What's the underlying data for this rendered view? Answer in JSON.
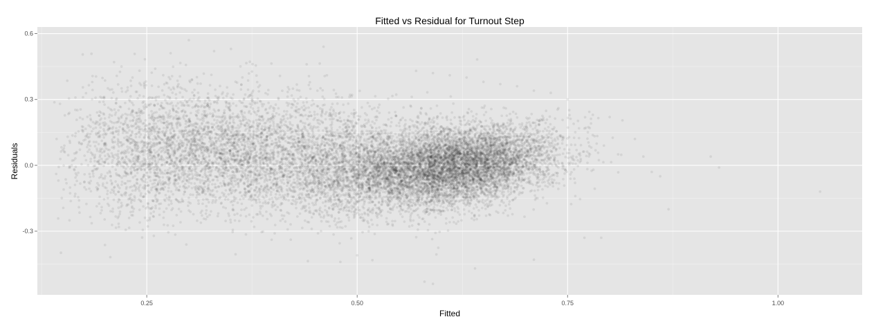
{
  "chart_data": {
    "type": "scatter",
    "title": "Fitted vs Residual for Turnout Step",
    "xlabel": "Fitted",
    "ylabel": "Residuals",
    "xlim": [
      0.12,
      1.1
    ],
    "ylim": [
      -0.59,
      0.63
    ],
    "x_ticks": [
      {
        "value": 0.25,
        "label": "0.25"
      },
      {
        "value": 0.5,
        "label": "0.50"
      },
      {
        "value": 0.75,
        "label": "0.75"
      },
      {
        "value": 1.0,
        "label": "1.00"
      }
    ],
    "y_ticks": [
      {
        "value": 0.6,
        "label": "0.6"
      },
      {
        "value": 0.3,
        "label": "0.3"
      },
      {
        "value": 0.0,
        "label": "0.0"
      },
      {
        "value": -0.3,
        "label": "-0.3"
      }
    ],
    "grid": true,
    "legend": "none",
    "panel_color": "#e5e5e5",
    "grid_color": "#ffffff",
    "point_color": "#000000",
    "point_alpha": 0.07,
    "density_clusters": [
      {
        "x": 0.63,
        "y": 0.01,
        "sx": 0.055,
        "sy": 0.085,
        "rho": 0.25,
        "weight": 0.36
      },
      {
        "x": 0.56,
        "y": -0.03,
        "sx": 0.07,
        "sy": 0.1,
        "rho": 0.15,
        "weight": 0.22
      },
      {
        "x": 0.45,
        "y": 0.04,
        "sx": 0.09,
        "sy": 0.13,
        "rho": -0.1,
        "weight": 0.2
      },
      {
        "x": 0.33,
        "y": 0.07,
        "sx": 0.07,
        "sy": 0.14,
        "rho": -0.1,
        "weight": 0.14
      },
      {
        "x": 0.24,
        "y": 0.05,
        "sx": 0.05,
        "sy": 0.15,
        "rho": 0.0,
        "weight": 0.08
      }
    ],
    "points": [
      [
        0.57,
        0.43
      ],
      [
        0.59,
        0.42
      ],
      [
        0.61,
        0.41
      ],
      [
        0.63,
        0.4
      ],
      [
        0.65,
        0.38
      ],
      [
        0.67,
        0.37
      ],
      [
        0.69,
        0.36
      ],
      [
        0.71,
        0.34
      ],
      [
        0.73,
        0.33
      ],
      [
        0.75,
        0.3
      ],
      [
        0.3,
        0.57
      ],
      [
        0.33,
        0.52
      ],
      [
        0.35,
        0.53
      ],
      [
        0.46,
        0.54
      ],
      [
        0.22,
        0.45
      ],
      [
        0.26,
        0.44
      ],
      [
        0.19,
        0.19
      ],
      [
        0.17,
        0.1
      ],
      [
        0.15,
        0.07
      ],
      [
        0.2,
        -0.06
      ],
      [
        0.8,
        0.22
      ],
      [
        0.81,
        0.05
      ],
      [
        0.84,
        0.04
      ],
      [
        0.85,
        -0.03
      ],
      [
        0.86,
        -0.05
      ],
      [
        0.87,
        -0.2
      ],
      [
        0.92,
        0.04
      ],
      [
        0.93,
        -0.01
      ],
      [
        1.05,
        -0.12
      ],
      [
        0.58,
        -0.53
      ],
      [
        0.59,
        -0.54
      ],
      [
        0.77,
        -0.33
      ],
      [
        0.79,
        -0.33
      ],
      [
        0.64,
        -0.47
      ],
      [
        0.71,
        -0.43
      ],
      [
        0.48,
        -0.44
      ],
      [
        0.5,
        -0.41
      ],
      [
        0.83,
        0.12
      ],
      [
        0.78,
        0.23
      ],
      [
        0.44,
        0.46
      ]
    ]
  }
}
